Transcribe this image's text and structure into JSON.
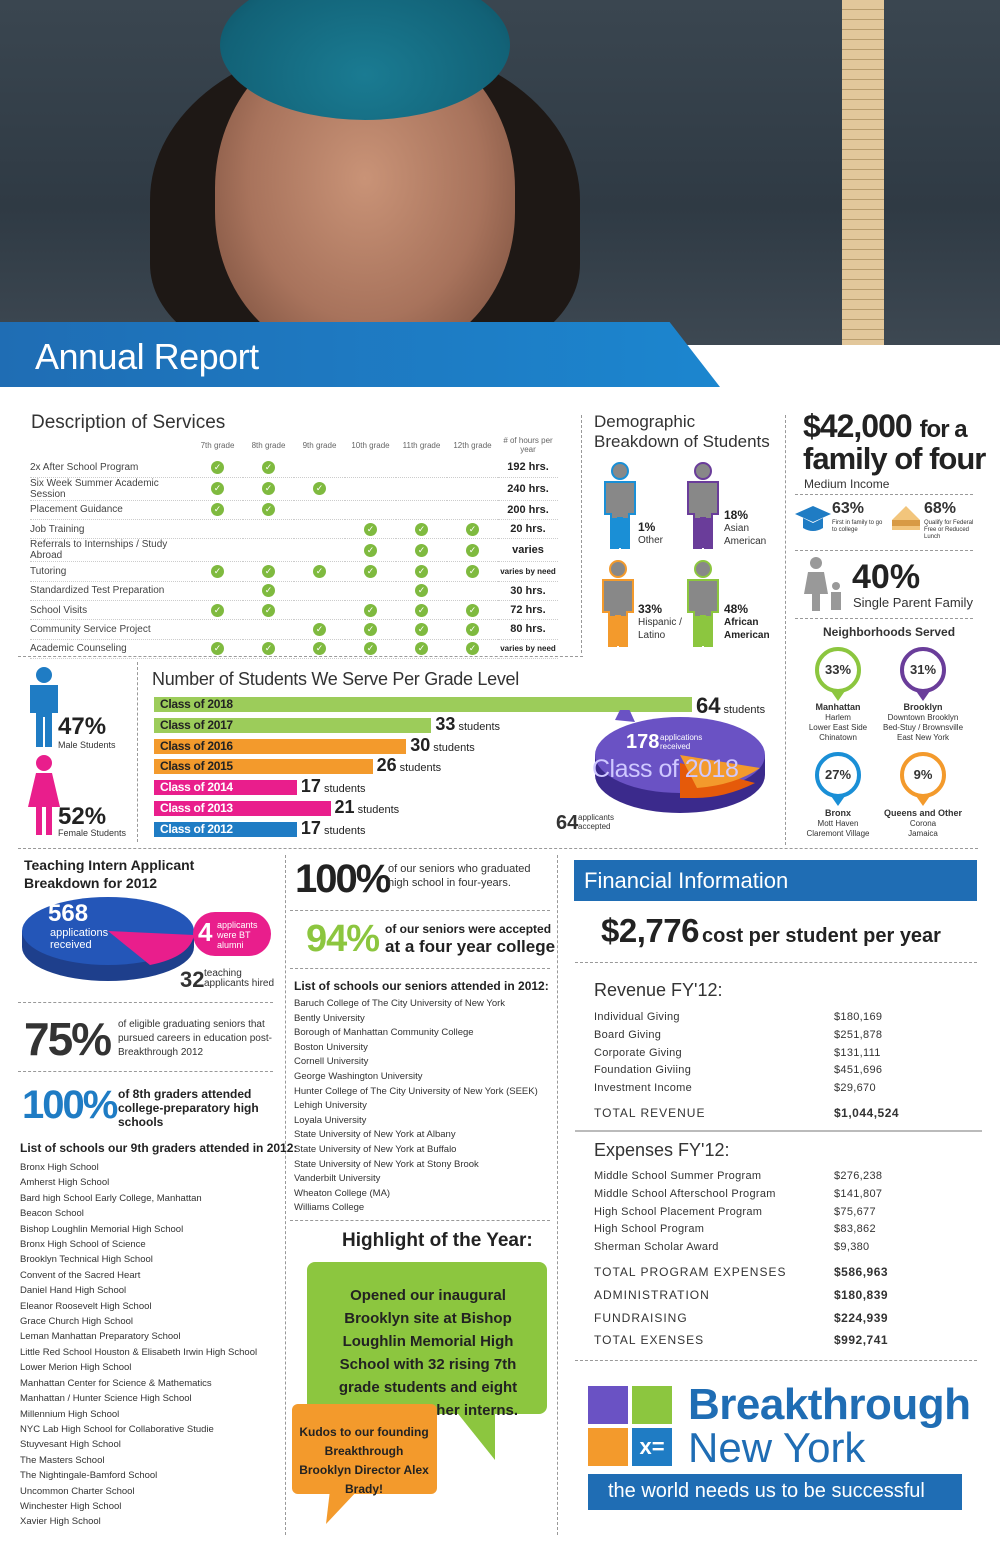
{
  "header": {
    "title": "Annual Report"
  },
  "services": {
    "title": "Description of Services",
    "columns": [
      "7th grade",
      "8th grade",
      "9th grade",
      "10th grade",
      "11th grade",
      "12th grade",
      "# of hours per year"
    ],
    "rows": [
      {
        "name": "2x After School Program",
        "checks": [
          1,
          1,
          0,
          0,
          0,
          0
        ],
        "hours": "192 hrs."
      },
      {
        "name": "Six Week Summer Academic Session",
        "checks": [
          1,
          1,
          1,
          0,
          0,
          0
        ],
        "hours": "240 hrs."
      },
      {
        "name": "Placement Guidance",
        "checks": [
          1,
          1,
          0,
          0,
          0,
          0
        ],
        "hours": "200 hrs."
      },
      {
        "name": "Job Training",
        "checks": [
          0,
          0,
          0,
          1,
          1,
          1
        ],
        "hours": "20 hrs."
      },
      {
        "name": "Referrals to Internships / Study Abroad",
        "checks": [
          0,
          0,
          0,
          1,
          1,
          1
        ],
        "hours": "varies"
      },
      {
        "name": "Tutoring",
        "checks": [
          1,
          1,
          1,
          1,
          1,
          1
        ],
        "hours": "varies by need"
      },
      {
        "name": "Standardized Test Preparation",
        "checks": [
          0,
          1,
          0,
          0,
          1,
          0
        ],
        "hours": "30 hrs."
      },
      {
        "name": "School Visits",
        "checks": [
          1,
          1,
          0,
          1,
          1,
          1
        ],
        "hours": "72 hrs."
      },
      {
        "name": "Community Service Project",
        "checks": [
          0,
          0,
          1,
          1,
          1,
          1
        ],
        "hours": "80 hrs."
      },
      {
        "name": "Academic Counseling",
        "checks": [
          1,
          1,
          1,
          1,
          1,
          1
        ],
        "hours": "varies by need"
      }
    ]
  },
  "demographics": {
    "title": "Demographic Breakdown of Students",
    "groups": [
      {
        "pct": "1%",
        "label": "Other",
        "color": "#1a8fd6"
      },
      {
        "pct": "18%",
        "label": "Asian American",
        "color": "#6a3d9a"
      },
      {
        "pct": "33%",
        "label": "Hispanic / Latino",
        "color": "#f39a2c"
      },
      {
        "pct": "48%",
        "label": "African American",
        "color": "#8cc63f"
      }
    ]
  },
  "income": {
    "amount": "$42,000",
    "suffix": "for a",
    "line2": "family of four",
    "caption": "Medium Income",
    "first_gen_pct": "63%",
    "first_gen_label": "First in family to go to college",
    "lunch_pct": "68%",
    "lunch_label": "Qualify for Federal Free or Reduced Lunch",
    "single_parent_pct": "40%",
    "single_parent_label": "Single Parent Family"
  },
  "neighborhoods": {
    "title": "Neighborhoods Served",
    "items": [
      {
        "pct": "33%",
        "name": "Manhattan",
        "areas": [
          "Harlem",
          "Lower East Side",
          "Chinatown"
        ],
        "color": "#8cc63f"
      },
      {
        "pct": "31%",
        "name": "Brooklyn",
        "areas": [
          "Downtown Brooklyn",
          "Bed-Stuy / Brownsville",
          "East New York"
        ],
        "color": "#6a3d9a"
      },
      {
        "pct": "27%",
        "name": "Bronx",
        "areas": [
          "Mott Haven",
          "Claremont Village"
        ],
        "color": "#1a8fd6"
      },
      {
        "pct": "9%",
        "name": "Queens and Other",
        "areas": [
          "Corona",
          "Jamaica"
        ],
        "color": "#f39a2c"
      }
    ]
  },
  "gender": {
    "male_pct": "47%",
    "male_label": "Male Students",
    "female_pct": "52%",
    "female_label": "Female Students"
  },
  "chart_data": {
    "type": "bar",
    "title": "Number of Students We Serve Per Grade Level",
    "categories": [
      "Class of 2018",
      "Class of 2017",
      "Class of 2016",
      "Class of 2015",
      "Class of 2014",
      "Class of 2013",
      "Class of 2012"
    ],
    "values": [
      64,
      33,
      30,
      26,
      17,
      21,
      17
    ],
    "colors": [
      "#9ccc5a",
      "#9ccc5a",
      "#f39a2c",
      "#f39a2c",
      "#e91e8c",
      "#e91e8c",
      "#1f7cc4"
    ],
    "unit": "students",
    "xlim": [
      0,
      64
    ]
  },
  "class2018": {
    "label": "Class of 2018",
    "applications": "178",
    "applications_label": "applications received",
    "accepted": "64",
    "accepted_label": "applicants accepted"
  },
  "intern": {
    "title": "Teaching Intern Applicant Breakdown for 2012",
    "received": "568",
    "received_label": "applications received",
    "bt": "4",
    "bt_label": "applicants were BT alumni",
    "hired": "32",
    "hired_label": "teaching applicants hired"
  },
  "stats": {
    "careers_pct": "75%",
    "careers_label": "of eligible graduating seniors that pursued careers in education post-Breakthrough 2012",
    "eighth_pct": "100%",
    "eighth_label": "of 8th graders attended college-preparatory high schools",
    "grad_pct": "100%",
    "grad_label": "of our seniors who graduated high school in four-years.",
    "college_pct": "94%",
    "college_label1": "of our seniors were accepted",
    "college_label2": "at a four year college"
  },
  "hs_schools": {
    "title": "List of schools our 9th graders attended in 2012:",
    "items": [
      "Bronx High School",
      "Amherst High School",
      "Bard high School Early College, Manhattan",
      "Beacon School",
      "Bishop Loughlin Memorial High School",
      "Bronx High School of Science",
      "Brooklyn Technical High School",
      "Convent of the Sacred Heart",
      "Daniel Hand High School",
      "Eleanor Roosevelt High School",
      "Grace Church High School",
      "Leman Manhattan Preparatory School",
      "Little Red School Houston & Elisabeth Irwin High School",
      "Lower Merion High School",
      "Manhattan Center for Science & Mathematics",
      "Manhattan / Hunter Science High School",
      "Millennium High School",
      "NYC Lab High School for Collaborative Studie",
      "Stuyvesant High School",
      "The Masters School",
      "The Nightingale-Bamford School",
      "Uncommon Charter School",
      "Winchester High School",
      "Xavier High School"
    ]
  },
  "colleges": {
    "title": "List of schools our seniors attended in 2012:",
    "items": [
      "Baruch College of The City University of New York",
      "Bently University",
      "Borough of Manhattan Community College",
      "Boston University",
      "Cornell University",
      "George Washington University",
      "Hunter College of The City University of New York (SEEK)",
      "Lehigh University",
      "Loyala University",
      "State University of New York at Albany",
      "State University of New York at Buffalo",
      "State University of New York at Stony Brook",
      "Vanderbilt University",
      "Wheaton College (MA)",
      "Williams College"
    ]
  },
  "highlight": {
    "title": "Highlight of the Year:",
    "text": "Opened our inaugural Brooklyn site at Bishop Loughlin Memorial High School with 32 rising 7th grade students and eight founding teacher interns.",
    "kudos": "Kudos to our founding Breakthrough Brooklyn Director Alex Brady!"
  },
  "financial": {
    "title": "Financial Information",
    "cost": "$2,776",
    "cost_label": "cost per student per year",
    "revenue_title": "Revenue FY'12:",
    "revenue": [
      {
        "label": "Individual Giving",
        "value": "$180,169"
      },
      {
        "label": "Board Giving",
        "value": "$251,878"
      },
      {
        "label": "Corporate Giving",
        "value": "$131,111"
      },
      {
        "label": "Foundation Giviing",
        "value": "$451,696"
      },
      {
        "label": "Investment Income",
        "value": "$29,670"
      }
    ],
    "total_revenue_label": "TOTAL REVENUE",
    "total_revenue": "$1,044,524",
    "expenses_title": "Expenses FY'12:",
    "expenses": [
      {
        "label": "Middle School Summer Program",
        "value": "$276,238"
      },
      {
        "label": "Middle School Afterschool Program",
        "value": "$141,807"
      },
      {
        "label": "High School Placement Program",
        "value": "$75,677"
      },
      {
        "label": "High School Program",
        "value": "$83,862"
      },
      {
        "label": "Sherman Scholar Award",
        "value": "$9,380"
      }
    ],
    "totals": [
      {
        "label": "TOTAL PROGRAM EXPENSES",
        "value": "$586,963"
      },
      {
        "label": "ADMINISTRATION",
        "value": "$180,839"
      },
      {
        "label": "FUNDRAISING",
        "value": "$224,939"
      },
      {
        "label": "TOTAL EXENSES",
        "value": "$992,741"
      }
    ]
  },
  "brand": {
    "name1": "Breakthrough",
    "name2": "New York",
    "tagline": "the world needs us to be successful",
    "color": "#1f6db4"
  }
}
